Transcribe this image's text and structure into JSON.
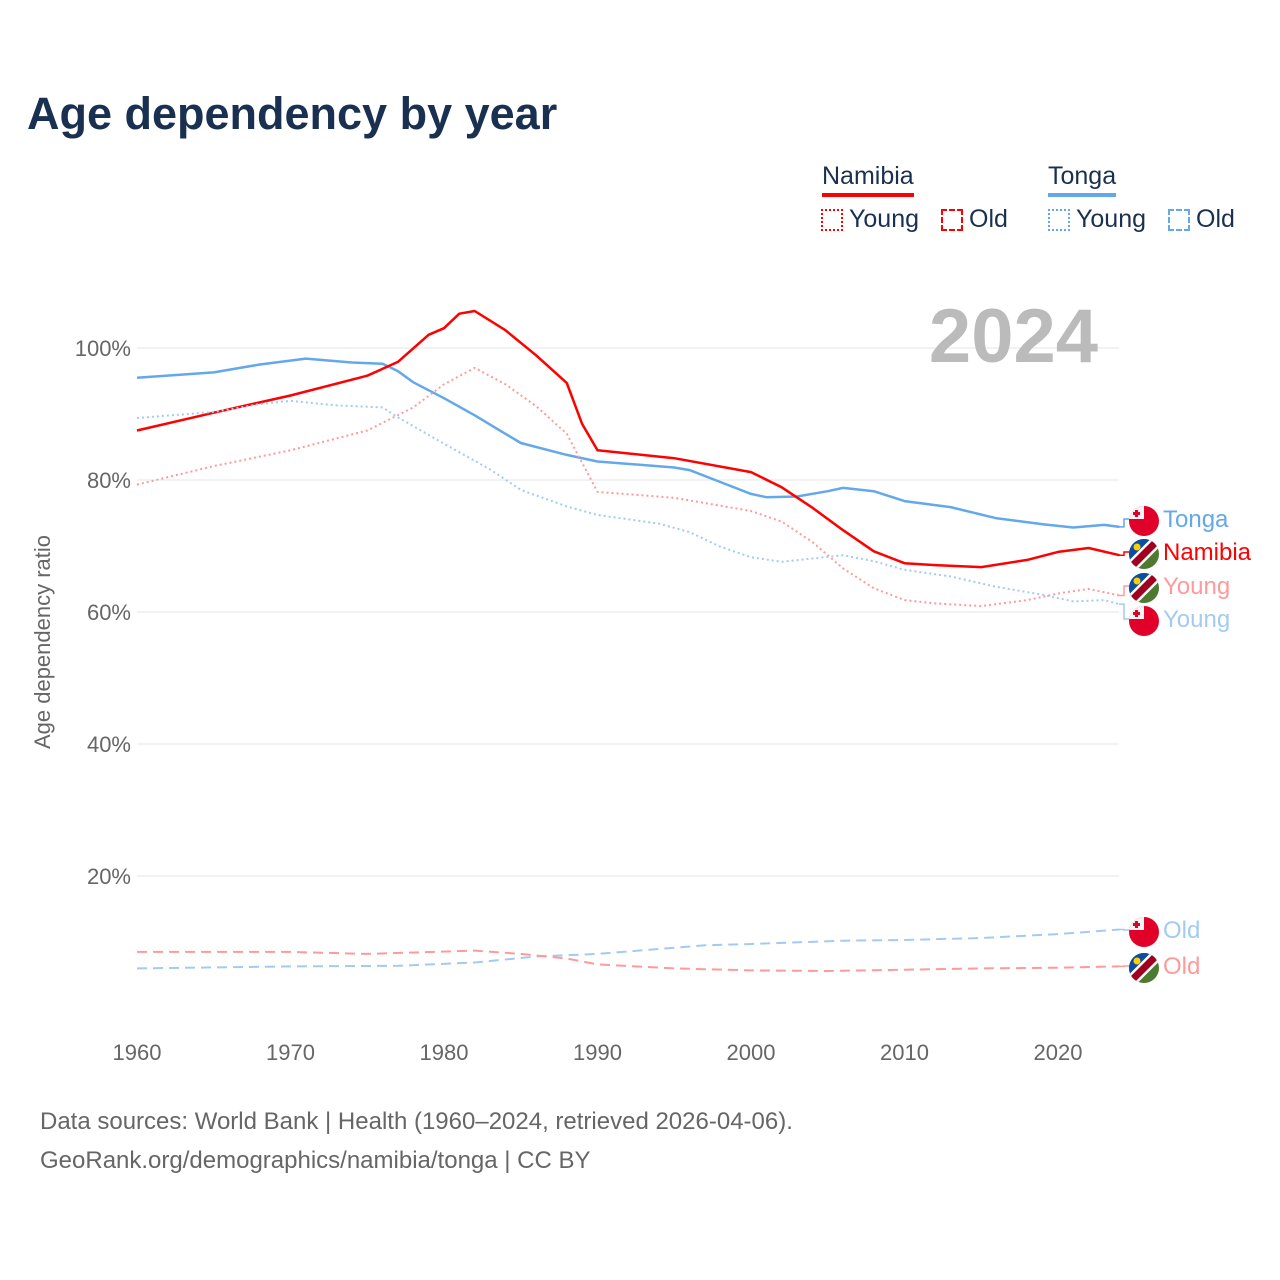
{
  "title": "Age dependency by year",
  "legend": {
    "countries": [
      {
        "name": "Namibia",
        "color": "#ff0000",
        "young_color": "#ff0000",
        "old_color": "#ff0000"
      },
      {
        "name": "Tonga",
        "color": "#64a8ec",
        "young_color": "#64a8ec",
        "old_color": "#64a8ec"
      }
    ],
    "young_label": "Young",
    "old_label": "Old"
  },
  "chart_data": {
    "type": "line",
    "title": "Age dependency by year",
    "ylabel": "Age dependency ratio",
    "xlabel": "",
    "year_label": "2024",
    "xlim": [
      1960,
      2024
    ],
    "ylim": [
      0,
      110
    ],
    "x_ticks": [
      "1960",
      "1970",
      "1980",
      "1990",
      "2000",
      "2010",
      "2020"
    ],
    "y_ticks": [
      {
        "v": 20,
        "label": "20%"
      },
      {
        "v": 40,
        "label": "40%"
      },
      {
        "v": 60,
        "label": "60%"
      },
      {
        "v": 80,
        "label": "80%"
      },
      {
        "v": 100,
        "label": "100%"
      }
    ],
    "grid": true,
    "series": [
      {
        "name": "Tonga",
        "label": "Tonga",
        "country": "Tonga",
        "style": "solid",
        "color": "#64a8ec",
        "x": [
          1960,
          1965,
          1968,
          1971,
          1974,
          1976,
          1977,
          1978,
          1980,
          1982,
          1984,
          1985,
          1988,
          1990,
          1995,
          1996,
          1998,
          2000,
          2001,
          2003,
          2005,
          2006,
          2008,
          2010,
          2013,
          2016,
          2019,
          2021,
          2023,
          2024
        ],
        "y": [
          95.5,
          96.3,
          97.5,
          98.4,
          97.8,
          97.6,
          96.5,
          94.8,
          92.4,
          89.8,
          87.0,
          85.6,
          83.8,
          82.8,
          81.9,
          81.5,
          79.7,
          77.9,
          77.4,
          77.5,
          78.3,
          78.8,
          78.3,
          76.8,
          75.9,
          74.2,
          73.3,
          72.8,
          73.2,
          72.9
        ]
      },
      {
        "name": "Namibia",
        "label": "Namibia",
        "country": "Namibia",
        "style": "solid",
        "color": "#ff0000",
        "x": [
          1960,
          1965,
          1970,
          1975,
          1977,
          1979,
          1980,
          1981,
          1982,
          1984,
          1986,
          1988,
          1989,
          1990,
          1995,
          2000,
          2002,
          2004,
          2006,
          2008,
          2010,
          2012,
          2015,
          2018,
          2020,
          2022,
          2024
        ],
        "y": [
          87.5,
          90.2,
          92.8,
          95.8,
          97.9,
          102,
          103,
          105.2,
          105.6,
          102.7,
          98.9,
          94.7,
          88.5,
          84.5,
          83.3,
          81.2,
          78.9,
          75.8,
          72.4,
          69.2,
          67.4,
          67.1,
          66.8,
          67.9,
          69.1,
          69.7,
          68.6
        ]
      },
      {
        "name": "Namibia Young",
        "label": "Young",
        "country": "Namibia",
        "style": "dotted",
        "color": "#ff9a9a",
        "x": [
          1960,
          1965,
          1970,
          1975,
          1978,
          1980,
          1982,
          1984,
          1986,
          1988,
          1990,
          1995,
          2000,
          2002,
          2004,
          2006,
          2008,
          2010,
          2012,
          2015,
          2018,
          2020,
          2022,
          2024
        ],
        "y": [
          79.3,
          82.1,
          84.5,
          87.5,
          91.0,
          94.5,
          97.0,
          94.5,
          91.2,
          87.0,
          78.2,
          77.3,
          75.3,
          73.7,
          70.6,
          66.6,
          63.6,
          61.8,
          61.3,
          60.9,
          61.8,
          62.8,
          63.5,
          62.5
        ]
      },
      {
        "name": "Tonga Young",
        "label": "Young",
        "country": "Tonga",
        "style": "dotted",
        "color": "#a3cbf2",
        "x": [
          1960,
          1965,
          1968,
          1970,
          1973,
          1976,
          1977,
          1980,
          1983,
          1985,
          1988,
          1990,
          1994,
          1996,
          1998,
          2000,
          2002,
          2004,
          2006,
          2008,
          2010,
          2013,
          2016,
          2019,
          2021,
          2023,
          2024
        ],
        "y": [
          89.4,
          90.3,
          91.5,
          92.0,
          91.3,
          91.0,
          89.5,
          85.5,
          81.6,
          78.5,
          76.0,
          74.7,
          73.4,
          72.1,
          69.9,
          68.3,
          67.6,
          68.1,
          68.6,
          67.7,
          66.4,
          65.4,
          63.8,
          62.6,
          61.6,
          61.8,
          61.2
        ]
      },
      {
        "name": "Tonga Old",
        "label": "Old",
        "country": "Tonga",
        "style": "dashed",
        "color": "#a3cbf2",
        "x": [
          1960,
          1970,
          1977,
          1982,
          1986,
          1990,
          1997,
          2000,
          2006,
          2010,
          2015,
          2020,
          2024
        ],
        "y": [
          6.0,
          6.3,
          6.4,
          6.9,
          7.8,
          8.2,
          9.5,
          9.7,
          10.2,
          10.3,
          10.6,
          11.2,
          11.9
        ]
      },
      {
        "name": "Namibia Old",
        "label": "Old",
        "country": "Namibia",
        "style": "dashed",
        "color": "#ff9a9a",
        "x": [
          1960,
          1970,
          1975,
          1982,
          1985,
          1988,
          1990,
          1995,
          2000,
          2005,
          2010,
          2015,
          2020,
          2024
        ],
        "y": [
          8.5,
          8.5,
          8.2,
          8.7,
          8.2,
          7.5,
          6.6,
          6.0,
          5.7,
          5.6,
          5.8,
          6.0,
          6.1,
          6.3
        ]
      }
    ]
  },
  "footer": {
    "line1": "Data sources: World Bank | Health (1960–2024, retrieved 2026-04-06).",
    "line2": "GeoRank.org/demographics/namibia/tonga | CC BY"
  }
}
